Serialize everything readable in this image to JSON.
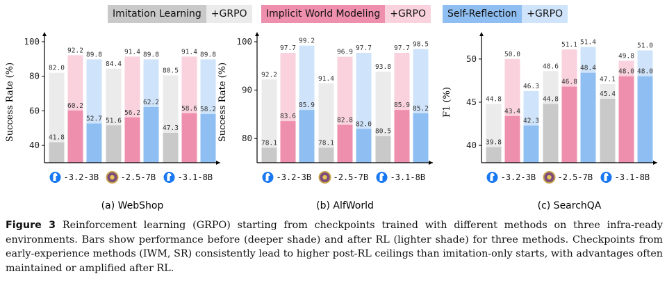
{
  "legend": {
    "items": [
      {
        "name": "Imitation Learning",
        "rl_label": "+GRPO",
        "deep": "#c9c9c9",
        "light": "#ebebeb"
      },
      {
        "name": "Implicit World Modeling",
        "rl_label": "+GRPO",
        "deep": "#ef8fae",
        "light": "#f9d2de"
      },
      {
        "name": "Self-Reflection",
        "rl_label": "+GRPO",
        "deep": "#8fbff2",
        "light": "#cfe4fa"
      }
    ]
  },
  "colors": {
    "IL": {
      "deep": "#c9c9c9",
      "light": "#ebebeb"
    },
    "IWM": {
      "deep": "#ef8fae",
      "light": "#f9d2de"
    },
    "SR": {
      "deep": "#8fbff2",
      "light": "#cfe4fa"
    }
  },
  "chart_data": [
    {
      "type": "bar",
      "stacked_before_after": true,
      "title": "(a) WebShop",
      "ylabel": "Success Rate (%)",
      "ylim": [
        30,
        100
      ],
      "yticks": [
        40,
        60,
        80,
        100
      ],
      "categories": [
        "-3.2-3B",
        "-2.5-7B",
        "-3.1-8B"
      ],
      "category_icons": [
        "llama-icon",
        "qwen-icon",
        "llama-icon"
      ],
      "series": [
        {
          "name": "Imitation Learning",
          "key": "IL",
          "before": [
            41.8,
            51.6,
            47.3
          ],
          "after": [
            82.0,
            84.4,
            80.5
          ]
        },
        {
          "name": "Implicit World Modeling",
          "key": "IWM",
          "before": [
            60.2,
            56.2,
            58.6
          ],
          "after": [
            92.2,
            91.4,
            91.4
          ]
        },
        {
          "name": "Self-Reflection",
          "key": "SR",
          "before": [
            52.7,
            62.2,
            58.2
          ],
          "after": [
            89.8,
            89.8,
            89.8
          ]
        }
      ]
    },
    {
      "type": "bar",
      "stacked_before_after": true,
      "title": "(b) AlfWorld",
      "ylabel": "Success Rate (%)",
      "ylim": [
        75,
        100
      ],
      "yticks": [
        80,
        90,
        100
      ],
      "categories": [
        "-3.2-3B",
        "-2.5-7B",
        "-3.1-8B"
      ],
      "category_icons": [
        "llama-icon",
        "qwen-icon",
        "llama-icon"
      ],
      "series": [
        {
          "name": "Imitation Learning",
          "key": "IL",
          "before": [
            78.1,
            78.1,
            80.5
          ],
          "after": [
            92.2,
            91.4,
            93.8
          ]
        },
        {
          "name": "Implicit World Modeling",
          "key": "IWM",
          "before": [
            83.6,
            82.8,
            85.9
          ],
          "after": [
            97.7,
            96.9,
            97.7
          ]
        },
        {
          "name": "Self-Reflection",
          "key": "SR",
          "before": [
            85.9,
            82.0,
            85.2
          ],
          "after": [
            99.2,
            97.7,
            98.5
          ]
        }
      ]
    },
    {
      "type": "bar",
      "stacked_before_after": true,
      "title": "(c) SearchQA",
      "ylabel": "F1 (%)",
      "ylim": [
        38,
        52
      ],
      "yticks": [
        40,
        45,
        50
      ],
      "categories": [
        "-3.2-3B",
        "-2.5-7B",
        "-3.1-8B"
      ],
      "category_icons": [
        "llama-icon",
        "qwen-icon",
        "llama-icon"
      ],
      "series": [
        {
          "name": "Imitation Learning",
          "key": "IL",
          "before": [
            39.8,
            44.8,
            45.4
          ],
          "after": [
            44.8,
            48.6,
            47.1
          ]
        },
        {
          "name": "Implicit World Modeling",
          "key": "IWM",
          "before": [
            43.4,
            46.8,
            48.0
          ],
          "after": [
            50.0,
            51.1,
            49.8
          ]
        },
        {
          "name": "Self-Reflection",
          "key": "SR",
          "before": [
            42.3,
            48.4,
            48.0
          ],
          "after": [
            46.3,
            51.4,
            51.0
          ]
        }
      ]
    }
  ],
  "caption": {
    "label": "Figure 3",
    "text": " Reinforcement learning (GRPO) starting from checkpoints trained with different methods on three infra-ready environments. Bars show performance before (deeper shade) and after RL (lighter shade) for three methods. Checkpoints from early-experience methods (IWM, SR) consistently lead to higher post-RL ceilings than imitation-only starts, with advantages often maintained or amplified after RL."
  }
}
